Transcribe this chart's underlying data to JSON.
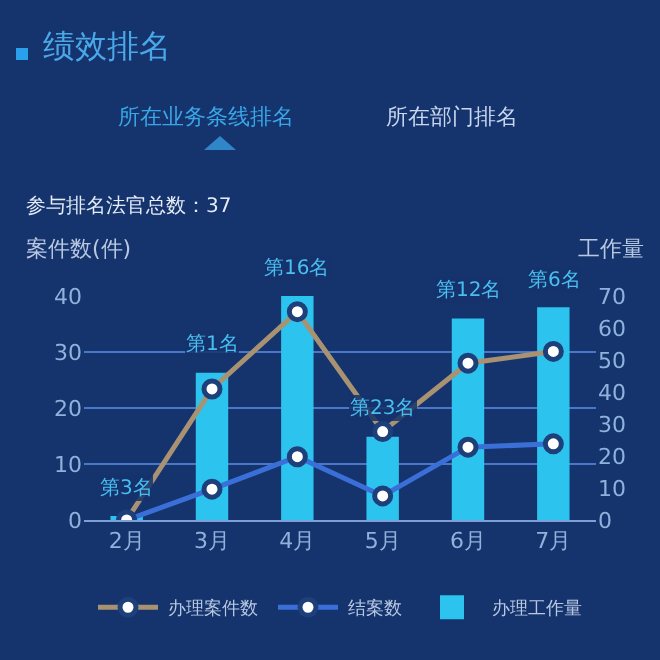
{
  "chart_data": {
    "type": "bar",
    "title": "绩效排名",
    "subtitle": "参与排名法官总数：37",
    "annotations": [
      "所在业务条线排名",
      "所在部门排名"
    ],
    "xlabel": null,
    "ylabel": "案件数(件)",
    "y2label": "工作量",
    "categories": [
      "2月",
      "3月",
      "4月",
      "5月",
      "6月",
      "7月"
    ],
    "series": [
      {
        "name": "办理案件数",
        "type": "line",
        "color": "#a89272",
        "values": [
          0,
          23.4,
          37.2,
          15.8,
          28,
          30.1
        ]
      },
      {
        "name": "结案数",
        "type": "line",
        "color": "#3a6fd8",
        "values": [
          0,
          5.5,
          11.3,
          4.3,
          13,
          13.6
        ]
      },
      {
        "name": "办理工作量",
        "type": "bar",
        "axis": "y2",
        "color": "#2cc4ee",
        "values": [
          1,
          46,
          70,
          26,
          63,
          66.5
        ],
        "value_labels": [
          "第3名",
          "第1名",
          "第16名",
          "第23名",
          "第12名",
          "第6名"
        ]
      }
    ],
    "ylim": [
      0,
      40
    ],
    "yticks": [
      0,
      10,
      20,
      30,
      40
    ],
    "y2lim": [
      0,
      70
    ],
    "y2ticks": [
      0,
      10,
      20,
      30,
      40,
      50,
      60,
      70
    ],
    "grid": "y",
    "legend": "bottom",
    "marker": "circle",
    "line_style": "solid"
  }
}
